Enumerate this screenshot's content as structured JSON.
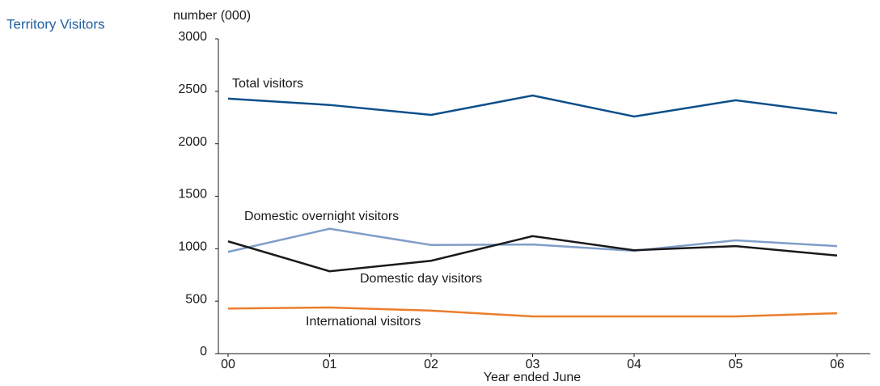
{
  "chart_data": {
    "type": "line",
    "title": "Territory Visitors",
    "y_label": "number (000)",
    "x_label": "Year ended June",
    "categories": [
      "00",
      "01",
      "02",
      "03",
      "04",
      "05",
      "06"
    ],
    "ylim": [
      0,
      3000
    ],
    "yticks": [
      0,
      500,
      1000,
      1500,
      2000,
      2500,
      3000
    ],
    "series": [
      {
        "name": "Total visitors",
        "color": "#0d4f8b",
        "values": [
          2430,
          2370,
          2275,
          2460,
          2260,
          2415,
          2290
        ]
      },
      {
        "name": "Domestic overnight visitors",
        "color": "#7f9ec8",
        "values": [
          970,
          1190,
          1035,
          1040,
          980,
          1080,
          1025
        ]
      },
      {
        "name": "Domestic day visitors",
        "color": "#1a1a1a",
        "values": [
          1070,
          785,
          885,
          1120,
          985,
          1025,
          935
        ]
      },
      {
        "name": "International visitors",
        "color": "#ec7d2c",
        "values": [
          430,
          440,
          410,
          355,
          355,
          355,
          385
        ]
      }
    ]
  }
}
